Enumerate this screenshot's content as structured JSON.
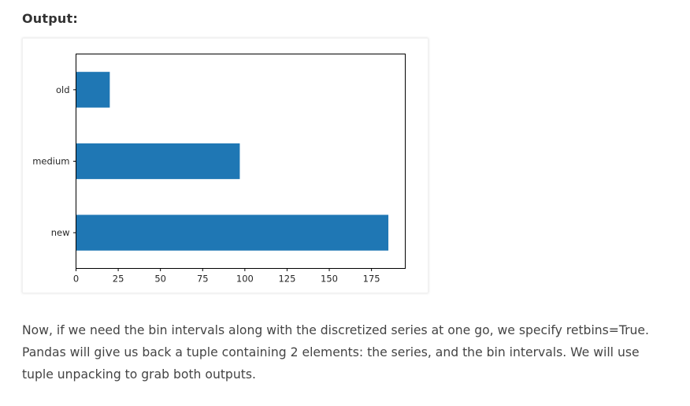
{
  "header": {
    "output_label": "Output:"
  },
  "chart_data": {
    "type": "bar",
    "orientation": "horizontal",
    "categories": [
      "new",
      "medium",
      "old"
    ],
    "values": [
      185,
      97,
      20
    ],
    "title": "",
    "xlabel": "",
    "ylabel": "",
    "xlim": [
      0,
      195
    ],
    "xticks": [
      0,
      25,
      50,
      75,
      100,
      125,
      150,
      175
    ],
    "grid": false,
    "bar_color": "#1f77b4"
  },
  "body_text": {
    "paragraph": "Now, if we need the bin intervals along with the discretized series at one go, we specify retbins=True. Pandas will give us back a tuple containing 2 elements: the series, and the bin intervals. We will use tuple unpacking to grab both outputs."
  }
}
